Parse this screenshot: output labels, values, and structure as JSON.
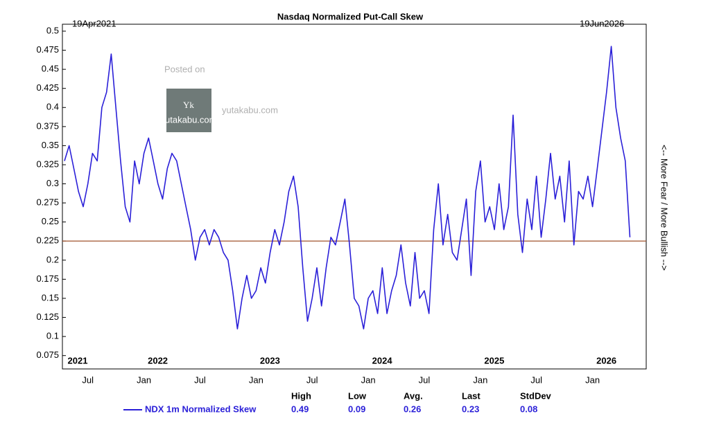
{
  "chart_data": {
    "type": "line",
    "title": "Nasdaq Normalized Put-Call Skew",
    "start_label": "19Apr2021",
    "end_label": "19Jun2026",
    "y_label_right": "<-- More Fear / More Bullish -->",
    "categories": [
      null,
      null,
      null,
      null,
      null,
      "Jul",
      null,
      null,
      null,
      null,
      null,
      null,
      null,
      null,
      null,
      null,
      null,
      "Jan",
      null,
      null,
      null,
      null,
      null,
      null,
      null,
      null,
      null,
      null,
      null,
      "Jul",
      null,
      null,
      null,
      null,
      null,
      null,
      null,
      null,
      null,
      null,
      null,
      "Jan",
      null,
      null,
      null,
      null,
      null,
      null,
      null,
      null,
      null,
      null,
      null,
      "Jul",
      null,
      null,
      null,
      null,
      null,
      null,
      null,
      null,
      null,
      null,
      null,
      "Jan",
      null,
      null,
      null,
      null,
      null,
      null,
      null,
      null,
      null,
      null,
      null,
      "Jul",
      null,
      null,
      null,
      null,
      null,
      null,
      null,
      null,
      null,
      null,
      null,
      "Jan",
      null,
      null,
      null,
      null,
      null,
      null,
      null,
      null,
      null,
      null,
      null,
      "Jul",
      null,
      null,
      null,
      null,
      null,
      null,
      null,
      null,
      null,
      null,
      null,
      "Jan",
      null,
      null,
      null,
      null,
      null,
      null,
      null,
      null,
      null,
      null,
      null
    ],
    "years": [
      "2021",
      "2022",
      "2023",
      "2024",
      "2025",
      "2026"
    ],
    "series": [
      {
        "name": "NDX 1m Normalized Skew",
        "color": "#2a1fd8",
        "values": [
          0.33,
          0.35,
          0.32,
          0.29,
          0.27,
          0.3,
          0.34,
          0.33,
          0.4,
          0.42,
          0.47,
          0.4,
          0.33,
          0.27,
          0.25,
          0.33,
          0.3,
          0.34,
          0.36,
          0.33,
          0.3,
          0.28,
          0.32,
          0.34,
          0.33,
          0.3,
          0.27,
          0.24,
          0.2,
          0.23,
          0.24,
          0.22,
          0.24,
          0.23,
          0.21,
          0.2,
          0.16,
          0.11,
          0.15,
          0.18,
          0.15,
          0.16,
          0.19,
          0.17,
          0.21,
          0.24,
          0.22,
          0.25,
          0.29,
          0.31,
          0.27,
          0.19,
          0.12,
          0.15,
          0.19,
          0.14,
          0.19,
          0.23,
          0.22,
          0.25,
          0.28,
          0.22,
          0.15,
          0.14,
          0.11,
          0.15,
          0.16,
          0.13,
          0.19,
          0.13,
          0.16,
          0.18,
          0.22,
          0.17,
          0.14,
          0.21,
          0.15,
          0.16,
          0.13,
          0.24,
          0.3,
          0.22,
          0.26,
          0.21,
          0.2,
          0.24,
          0.28,
          0.18,
          0.29,
          0.33,
          0.25,
          0.27,
          0.24,
          0.3,
          0.24,
          0.27,
          0.39,
          0.26,
          0.21,
          0.28,
          0.24,
          0.31,
          0.23,
          0.28,
          0.34,
          0.28,
          0.31,
          0.25,
          0.33,
          0.22,
          0.29,
          0.28,
          0.31,
          0.27,
          0.32,
          0.37,
          0.42,
          0.48,
          0.4,
          0.36,
          0.33,
          0.23,
          null,
          null,
          null
        ]
      }
    ],
    "reference_line": {
      "value": 0.225,
      "color": "#a0522d"
    },
    "ylim": [
      0.0575,
      0.5
    ],
    "yticks": [
      0.075,
      0.1,
      0.125,
      0.15,
      0.175,
      0.2,
      0.225,
      0.25,
      0.275,
      0.3,
      0.325,
      0.35,
      0.375,
      0.4,
      0.425,
      0.45,
      0.475,
      0.5
    ],
    "stats": [
      {
        "label": "High",
        "value": 0.49
      },
      {
        "label": "Low",
        "value": 0.09
      },
      {
        "label": "Avg.",
        "value": 0.26
      },
      {
        "label": "Last",
        "value": 0.23
      },
      {
        "label": "StdDev",
        "value": 0.08
      }
    ]
  },
  "watermark": {
    "line1": "Posted on",
    "site": "yutakabu.com",
    "logo_letter": "Yk",
    "logo_caption": "yutakabu.com"
  }
}
